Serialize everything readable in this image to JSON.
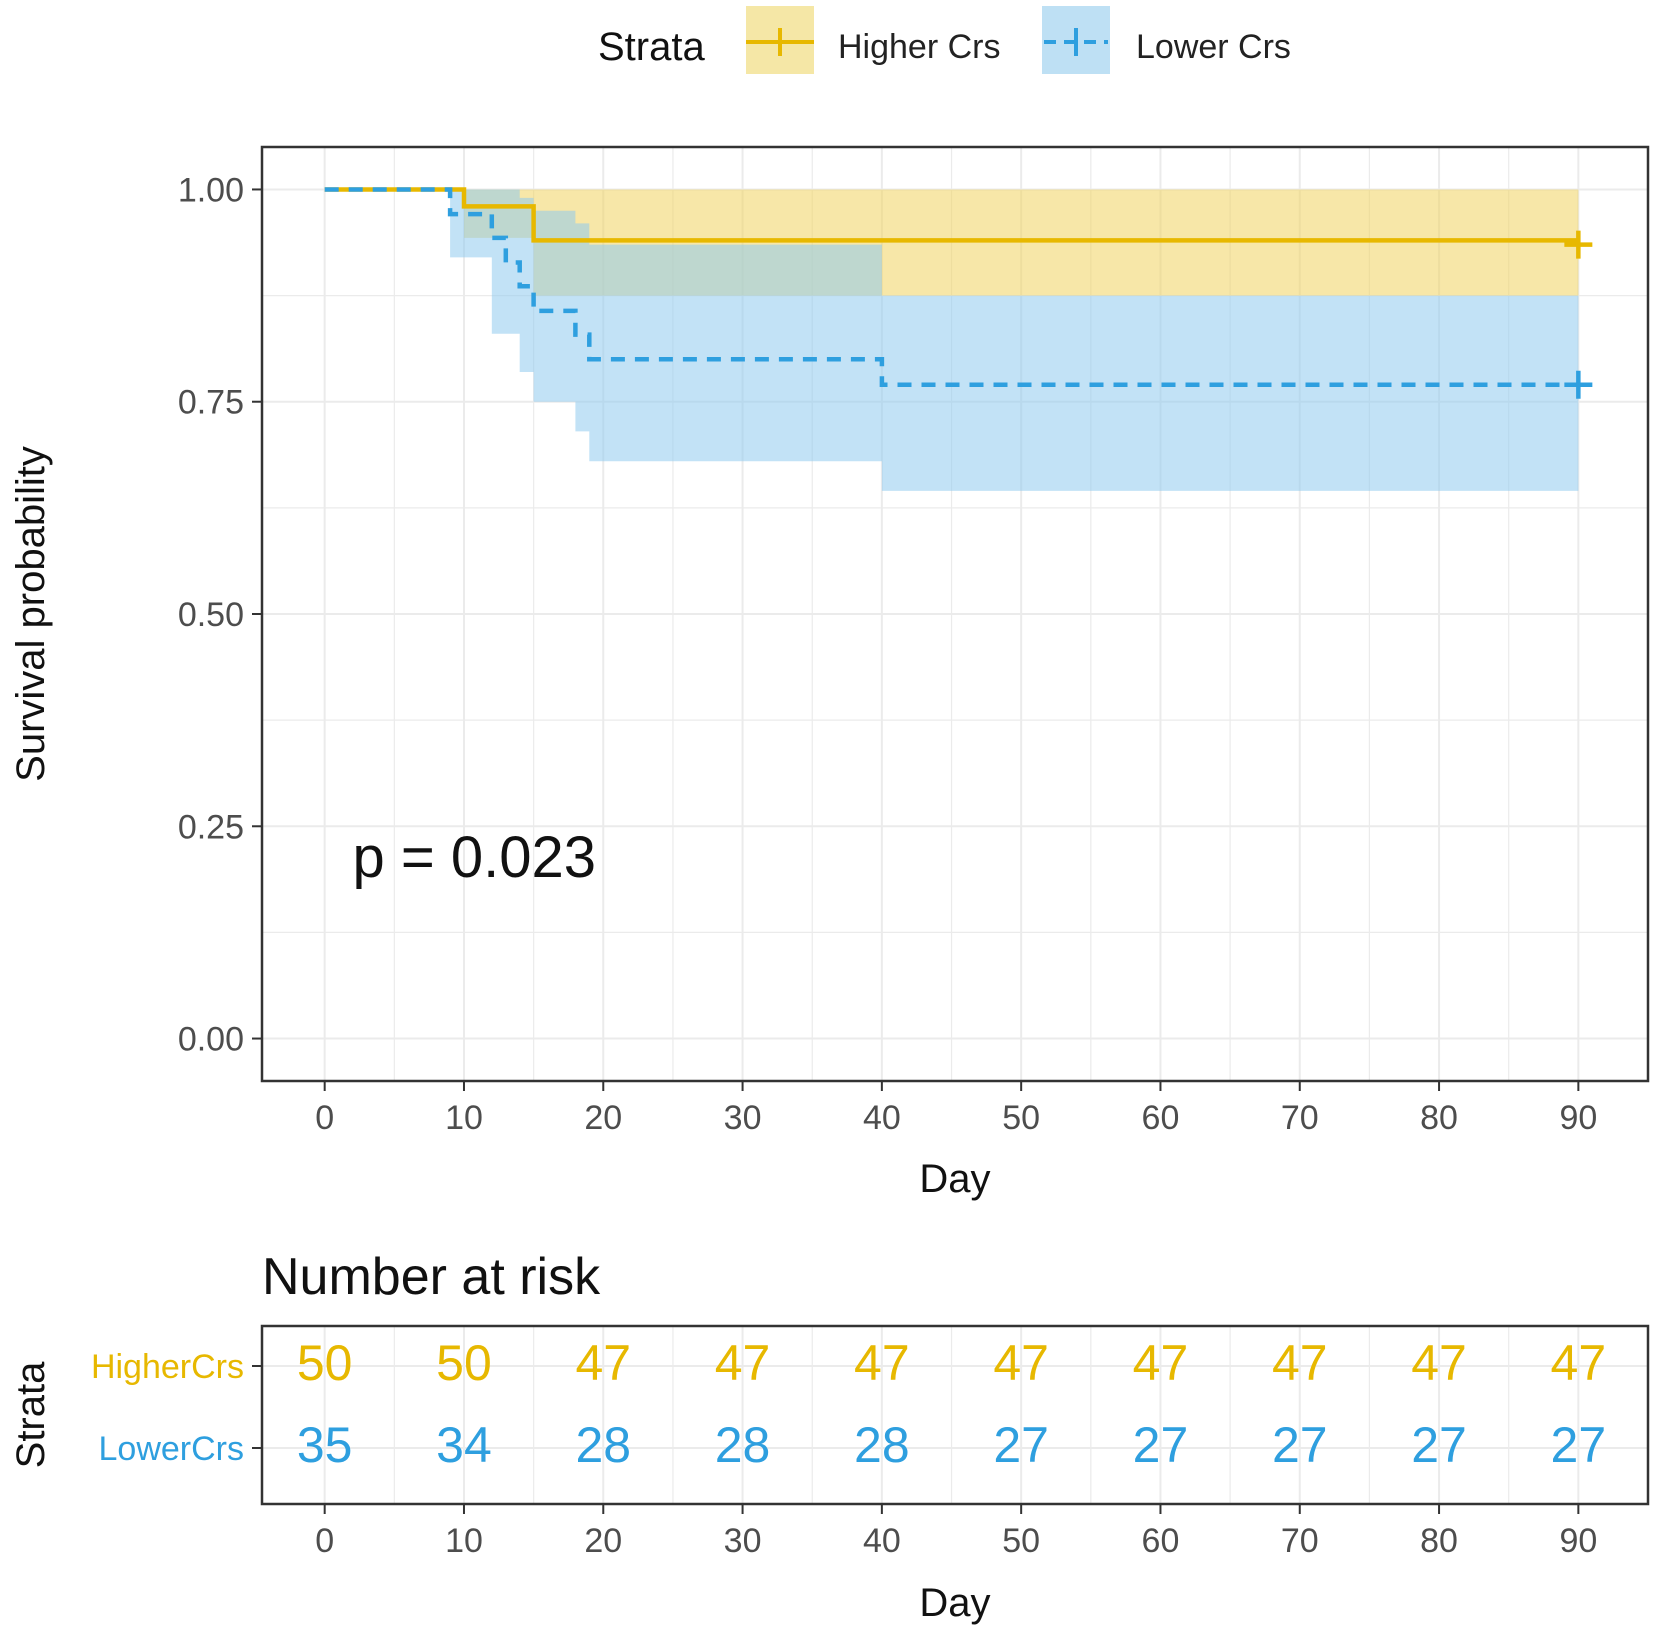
{
  "chart_data": {
    "type": "km-survival",
    "legend": {
      "title": "Strata",
      "entries": [
        {
          "label": "Higher Crs",
          "color": "#E7B800",
          "fill": "#F5E7A6",
          "dash": "solid"
        },
        {
          "label": "Lower Crs",
          "color": "#2E9FDF",
          "fill": "#BEE0F4",
          "dash": "dashed"
        }
      ]
    },
    "survival_plot": {
      "xlabel": "Day",
      "ylabel": "Survival probability",
      "xlim": [
        -4.5,
        95
      ],
      "ylim": [
        -0.05,
        1.05
      ],
      "xticks": [
        0,
        10,
        20,
        30,
        40,
        50,
        60,
        70,
        80,
        90
      ],
      "xtick_labels": [
        "0",
        "10",
        "20",
        "30",
        "40",
        "50",
        "60",
        "70",
        "80",
        "90"
      ],
      "yticks": [
        0,
        0.25,
        0.5,
        0.75,
        1.0
      ],
      "ytick_labels": [
        "0.00",
        "0.25",
        "0.50",
        "0.75",
        "1.00"
      ],
      "pvalue_text": "p = 0.023",
      "pvalue_pos": {
        "x": 2,
        "y": 0.19
      },
      "series": [
        {
          "name": "Higher Crs",
          "color": "#E7B800",
          "fill": "#F1D360",
          "fill_opacity": 0.55,
          "dashed": false,
          "steps": [
            [
              0,
              1.0
            ],
            [
              10,
              0.98
            ],
            [
              15,
              0.94
            ]
          ],
          "ci": [
            [
              0,
              1.0,
              1.0
            ],
            [
              10,
              0.943,
              1.0
            ],
            [
              15,
              0.875,
              1.0
            ],
            [
              40,
              0.875,
              1.0
            ]
          ],
          "end_x": 90,
          "censor_points": [
            [
              90,
              0.935
            ]
          ]
        },
        {
          "name": "Lower Crs",
          "color": "#2E9FDF",
          "fill": "#8FCBEF",
          "fill_opacity": 0.55,
          "dashed": true,
          "steps": [
            [
              0,
              1.0
            ],
            [
              9,
              0.971
            ],
            [
              12,
              0.943
            ],
            [
              13,
              0.914
            ],
            [
              14,
              0.886
            ],
            [
              15,
              0.857
            ],
            [
              18,
              0.829
            ],
            [
              19,
              0.8
            ],
            [
              40,
              0.77
            ]
          ],
          "ci": [
            [
              0,
              1.0,
              1.0
            ],
            [
              9,
              0.92,
              1.0
            ],
            [
              12,
              0.83,
              1.0
            ],
            [
              14,
              0.785,
              0.99
            ],
            [
              15,
              0.75,
              0.975
            ],
            [
              18,
              0.715,
              0.96
            ],
            [
              19,
              0.68,
              0.935
            ],
            [
              40,
              0.645,
              0.875
            ]
          ],
          "end_x": 90,
          "censor_points": [
            [
              90,
              0.77
            ]
          ]
        }
      ]
    },
    "risk_table": {
      "title": "Number at risk",
      "ylabel": "Strata",
      "xlabel": "Day",
      "times": [
        0,
        10,
        20,
        30,
        40,
        50,
        60,
        70,
        80,
        90
      ],
      "time_labels": [
        "0",
        "10",
        "20",
        "30",
        "40",
        "50",
        "60",
        "70",
        "80",
        "90"
      ],
      "rows": [
        {
          "label": "HigherCrs",
          "color": "#E7B800",
          "values": [
            "50",
            "50",
            "47",
            "47",
            "47",
            "47",
            "47",
            "47",
            "47",
            "47"
          ]
        },
        {
          "label": "LowerCrs",
          "color": "#2E9FDF",
          "values": [
            "35",
            "34",
            "28",
            "28",
            "28",
            "27",
            "27",
            "27",
            "27",
            "27"
          ]
        }
      ]
    }
  }
}
